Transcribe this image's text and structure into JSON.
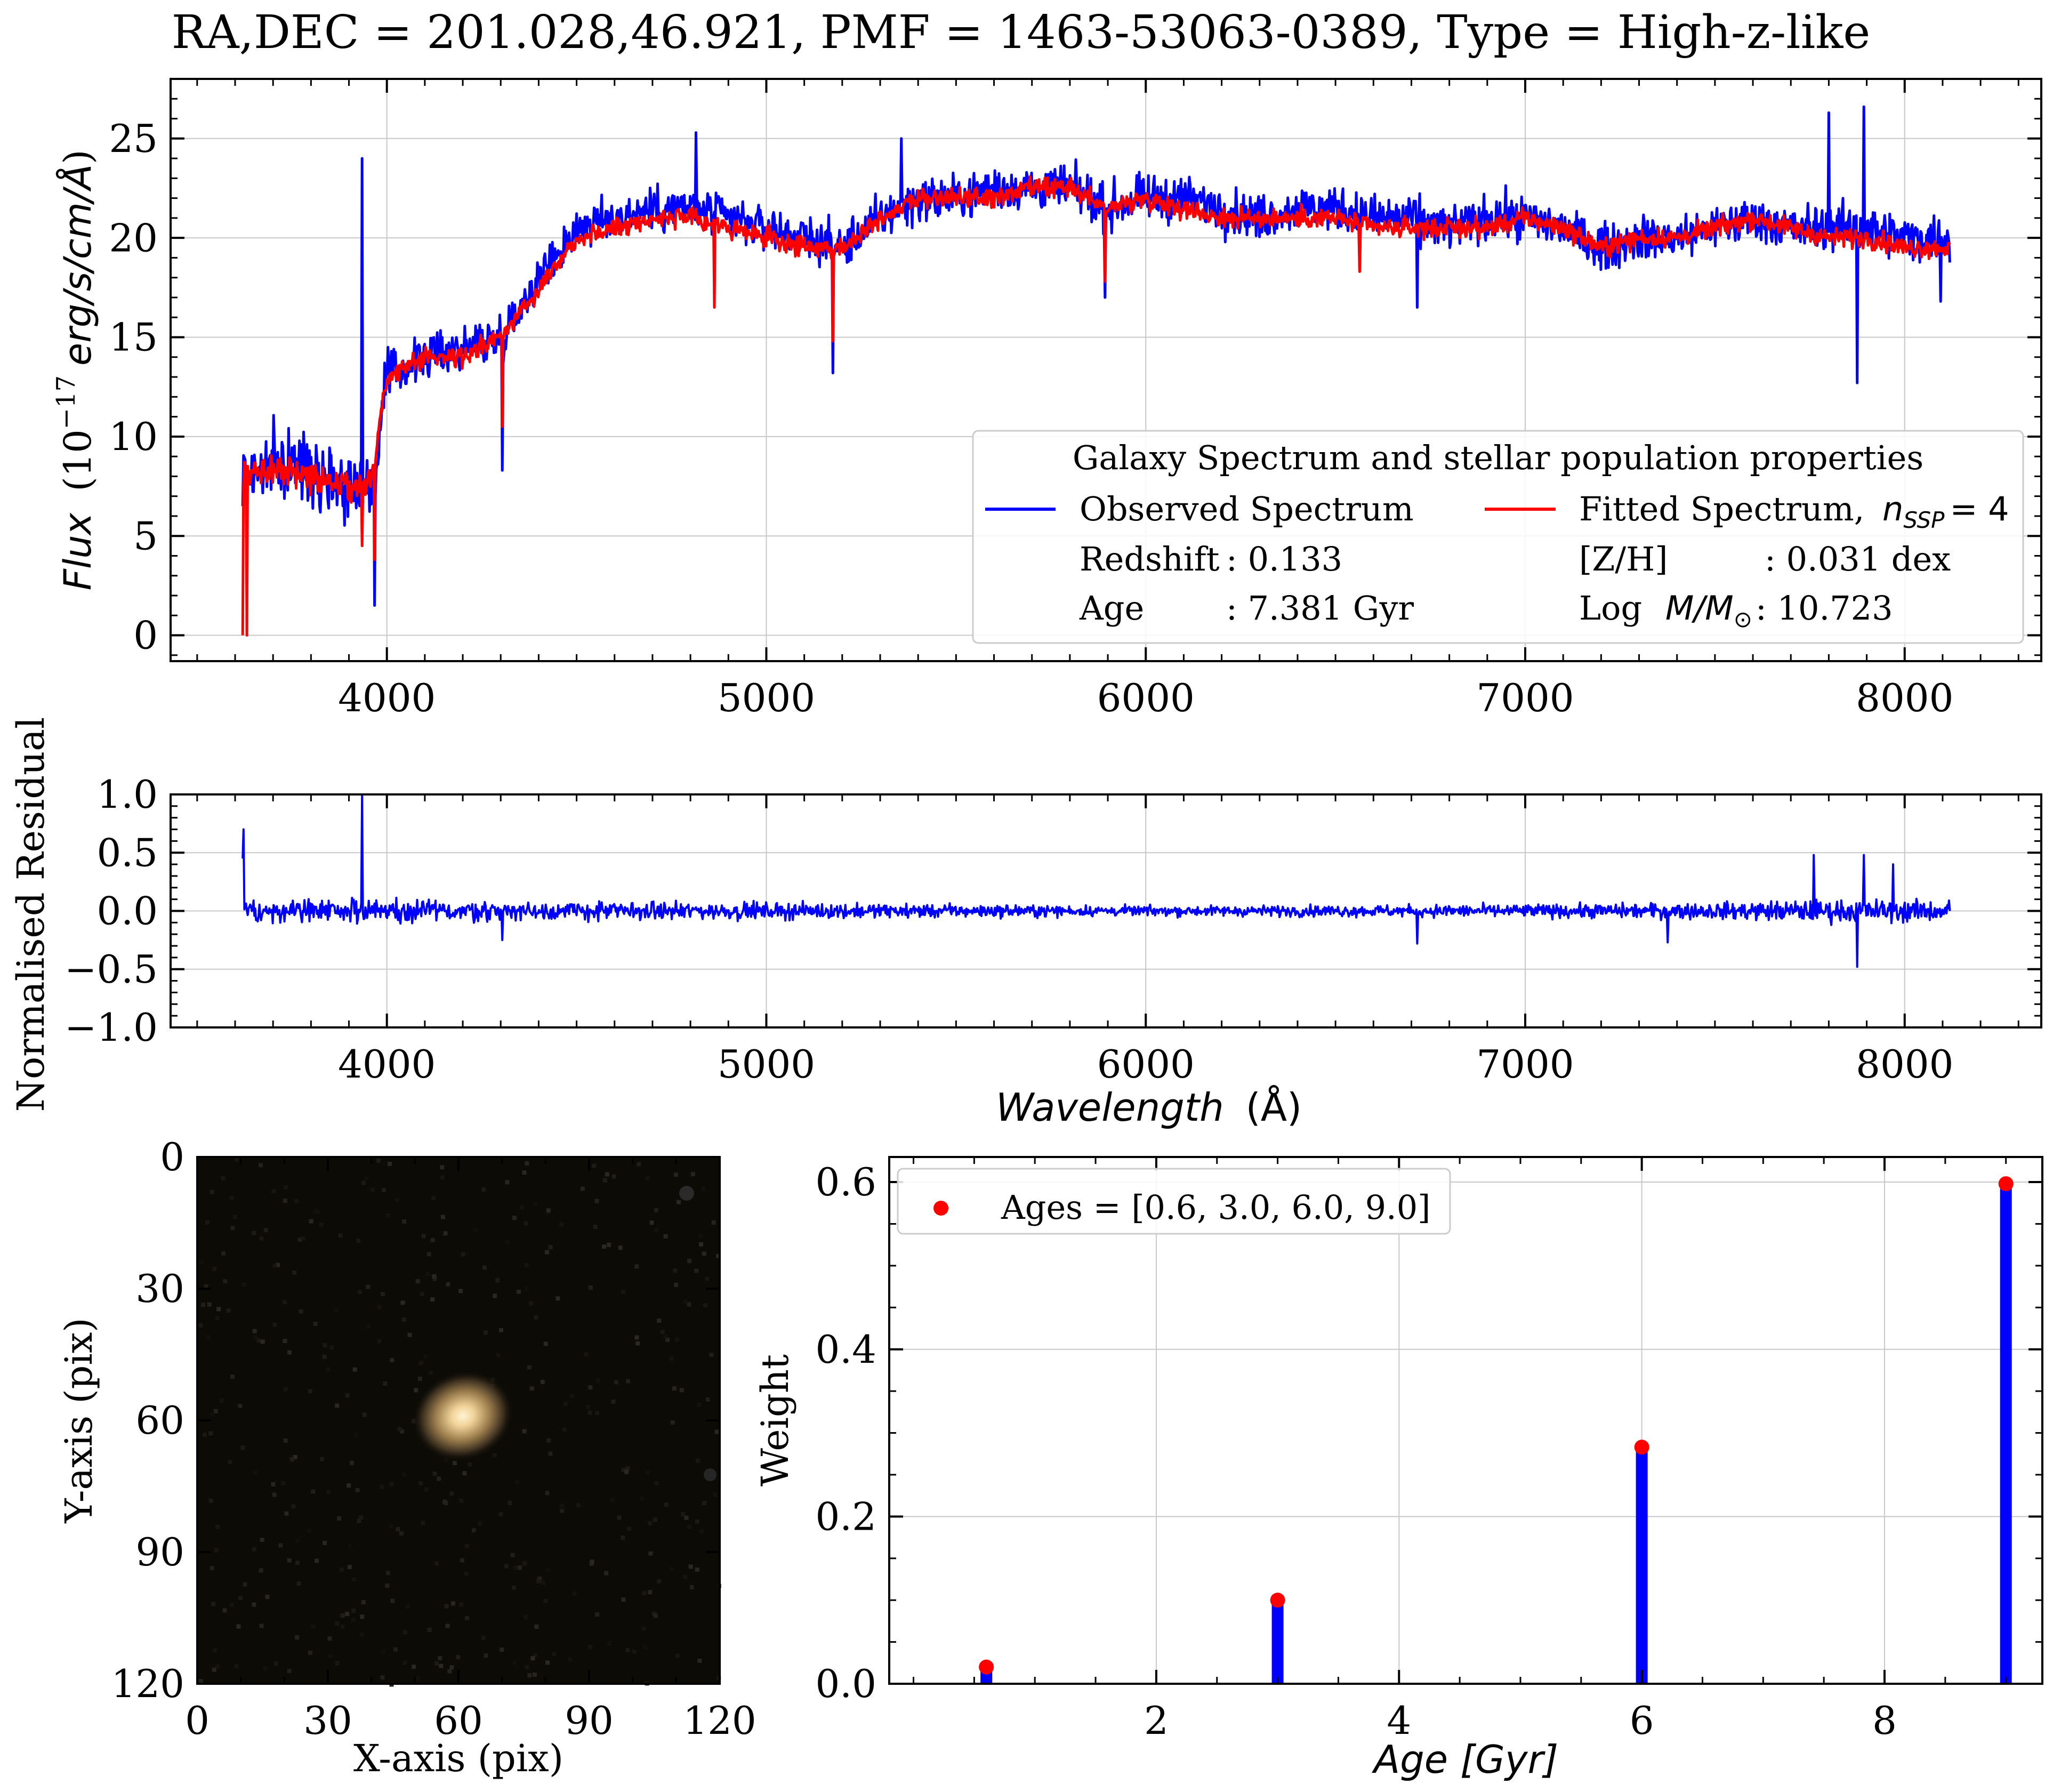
{
  "figure_title": "RA,DEC = 201.028,46.921, PMF = 1463-53063-0389, Type = High-z-like",
  "colors": {
    "observed": "#0000ff",
    "fitted": "#ff0000",
    "grid": "#c8c8c8",
    "weights_bar": "#0000ff",
    "weights_point": "#ff0000"
  },
  "chart_data": [
    {
      "id": "spectrum",
      "type": "line",
      "xlim": [
        3430,
        8360
      ],
      "ylim": [
        -1.3,
        28
      ],
      "x_ticks": [
        4000,
        5000,
        6000,
        7000,
        8000
      ],
      "y_ticks": [
        0,
        5,
        10,
        15,
        20,
        25
      ],
      "x_tick_labels": [
        "4000",
        "5000",
        "6000",
        "7000",
        "8000"
      ],
      "y_tick_labels": [
        "0",
        "5",
        "10",
        "15",
        "20",
        "25"
      ],
      "ylabel_italic": "Flux",
      "ylabel_unit": "(10",
      "ylabel_exp": "−17",
      "ylabel_unit_italic": "erg/s/cm/Å",
      "ylabel_close": ")",
      "grid": true,
      "legend": {
        "position": "lower-right",
        "title": "Galaxy Spectrum and stellar population properties",
        "observed_label": "Observed Spectrum",
        "fitted_label": "Fitted Spectrum,",
        "fitted_label_math": "n",
        "fitted_label_sub": "SSP",
        "fitted_label_value": "= 4",
        "redshift_label": "Redshift",
        "redshift_value": ": 0.133",
        "metallicity_label": "[Z/H]",
        "metallicity_value": ": 0.031 dex",
        "age_label": "Age",
        "age_value": ": 7.381 Gyr",
        "mass_label": "Log",
        "mass_math": "M/M",
        "mass_sub": "⊙",
        "mass_value": ":  10.723"
      },
      "observed_envelope": {
        "x": [
          3620,
          3700,
          3800,
          3900,
          3940,
          3960,
          4000,
          4100,
          4200,
          4300,
          4400,
          4500,
          4600,
          4700,
          4800,
          4900,
          5000,
          5100,
          5200,
          5300,
          5400,
          5500,
          5600,
          5700,
          5800,
          5900,
          6000,
          6100,
          6200,
          6300,
          6400,
          6500,
          6600,
          6700,
          6800,
          6900,
          7000,
          7100,
          7200,
          7300,
          7400,
          7500,
          7600,
          7700,
          7800,
          7900,
          8000,
          8120
        ],
        "y": [
          8,
          8.5,
          8.5,
          7.5,
          8,
          7,
          13,
          14,
          14.5,
          15,
          18,
          20.5,
          21,
          21.5,
          21.5,
          21,
          20.5,
          20,
          19.5,
          21,
          22,
          22,
          22.5,
          22.5,
          22.5,
          21.5,
          22,
          22,
          21.5,
          21,
          21.5,
          21.5,
          21,
          21,
          20.5,
          21,
          21,
          20.5,
          19.5,
          20,
          20,
          20.5,
          21,
          20.5,
          20.5,
          20.5,
          20,
          20
        ]
      },
      "fitted_envelope": {
        "x": [
          3620,
          3700,
          3800,
          3900,
          3940,
          3960,
          4000,
          4100,
          4200,
          4300,
          4400,
          4500,
          4600,
          4700,
          4800,
          4900,
          5000,
          5100,
          5200,
          5300,
          5400,
          5500,
          5600,
          5700,
          5800,
          5900,
          6000,
          6100,
          6200,
          6300,
          6400,
          6500,
          6600,
          6700,
          6800,
          6900,
          7000,
          7100,
          7200,
          7300,
          7400,
          7500,
          7600,
          7700,
          7800,
          7900,
          8000,
          8120
        ],
        "y": [
          8,
          8.5,
          8,
          7.5,
          7.5,
          8,
          13,
          14,
          14,
          15,
          17.5,
          20,
          20.5,
          21,
          21,
          20.5,
          20,
          19.5,
          19.5,
          21,
          22,
          22,
          22,
          22.5,
          22.5,
          21.5,
          22,
          21.5,
          21,
          21,
          21,
          21,
          20.5,
          20.5,
          20.5,
          20.5,
          21,
          20.5,
          19.5,
          20,
          20,
          20.5,
          21,
          20.5,
          20,
          20,
          19.5,
          19.5
        ]
      },
      "observed_features": [
        {
          "x": 3620,
          "y": 6.5
        },
        {
          "x": 3934,
          "y": 24
        },
        {
          "x": 3968,
          "y": 1.5
        },
        {
          "x": 4305,
          "y": 8.3
        },
        {
          "x": 4815,
          "y": 25.3
        },
        {
          "x": 5175,
          "y": 13.2
        },
        {
          "x": 5355,
          "y": 25
        },
        {
          "x": 5892,
          "y": 17
        },
        {
          "x": 6563,
          "y": 18.5
        },
        {
          "x": 6715,
          "y": 16.5
        },
        {
          "x": 7800,
          "y": 26.3
        },
        {
          "x": 7875,
          "y": 12.7
        },
        {
          "x": 7893,
          "y": 26.6
        },
        {
          "x": 8095,
          "y": 16.8
        }
      ],
      "fitted_features": [
        {
          "x": 3620,
          "y": 0
        },
        {
          "x": 3630,
          "y": 0
        },
        {
          "x": 3934,
          "y": 4.5
        },
        {
          "x": 3968,
          "y": 3.8
        },
        {
          "x": 4305,
          "y": 10.5
        },
        {
          "x": 4862,
          "y": 16.5
        },
        {
          "x": 5175,
          "y": 14.8
        },
        {
          "x": 5892,
          "y": 17.8
        },
        {
          "x": 6563,
          "y": 18.3
        }
      ]
    },
    {
      "id": "residual",
      "type": "line",
      "xlim": [
        3430,
        8360
      ],
      "ylim": [
        -1.0,
        1.0
      ],
      "x_ticks": [
        4000,
        5000,
        6000,
        7000,
        8000
      ],
      "y_ticks": [
        -1.0,
        -0.5,
        0.0,
        0.5,
        1.0
      ],
      "x_tick_labels": [
        "4000",
        "5000",
        "6000",
        "7000",
        "8000"
      ],
      "y_tick_labels": [
        "−1.0",
        "−0.5",
        "0.0",
        "0.5",
        "1.0"
      ],
      "xlabel_italic": "Wavelength",
      "xlabel_unit": "(Å)",
      "ylabel": "Normalised Residual",
      "grid": true,
      "noise_envelope": {
        "x": [
          3620,
          4000,
          4500,
          5000,
          5500,
          6000,
          6500,
          7000,
          7500,
          7700,
          7900,
          8120
        ],
        "y": [
          0.14,
          0.13,
          0.11,
          0.1,
          0.08,
          0.06,
          0.07,
          0.08,
          0.1,
          0.13,
          0.14,
          0.13
        ]
      },
      "features": [
        {
          "x": 3620,
          "y": 0.45
        },
        {
          "x": 3623,
          "y": 0.7
        },
        {
          "x": 3934,
          "y": 1.0
        },
        {
          "x": 4305,
          "y": -0.25
        },
        {
          "x": 6715,
          "y": -0.28
        },
        {
          "x": 7375,
          "y": -0.27
        },
        {
          "x": 7760,
          "y": 0.48
        },
        {
          "x": 7875,
          "y": -0.48
        },
        {
          "x": 7893,
          "y": 0.48
        },
        {
          "x": 7970,
          "y": 0.4
        }
      ]
    },
    {
      "id": "image",
      "type": "heatmap",
      "xlim": [
        0,
        120
      ],
      "ylim": [
        120,
        0
      ],
      "x_ticks": [
        0,
        30,
        60,
        90,
        120
      ],
      "y_ticks": [
        0,
        30,
        60,
        90,
        120
      ],
      "x_tick_labels": [
        "0",
        "30",
        "60",
        "90",
        "120"
      ],
      "y_tick_labels": [
        "0",
        "30",
        "60",
        "90",
        "120"
      ],
      "xlabel": "X-axis (pix)",
      "ylabel": "Y-axis (pix)",
      "grid": false,
      "source": {
        "x": 61,
        "y": 59
      }
    },
    {
      "id": "weights",
      "type": "bar",
      "xlim": [
        -0.2,
        9.3
      ],
      "ylim": [
        0,
        0.63
      ],
      "x_ticks": [
        2,
        4,
        6,
        8
      ],
      "y_ticks": [
        0.0,
        0.2,
        0.4,
        0.6
      ],
      "x_tick_labels": [
        "2",
        "4",
        "6",
        "8"
      ],
      "y_tick_labels": [
        "0.0",
        "0.2",
        "0.4",
        "0.6"
      ],
      "xlabel_italic": "Age [Gyr]",
      "ylabel": "Weight",
      "grid": true,
      "legend": {
        "position": "upper-left",
        "label": "Ages = [0.6, 3.0, 6.0, 9.0]"
      },
      "series": [
        {
          "x": [
            0.6,
            3.0,
            6.0,
            9.0
          ],
          "values": [
            0.02,
            0.1,
            0.283,
            0.598
          ]
        }
      ]
    }
  ]
}
